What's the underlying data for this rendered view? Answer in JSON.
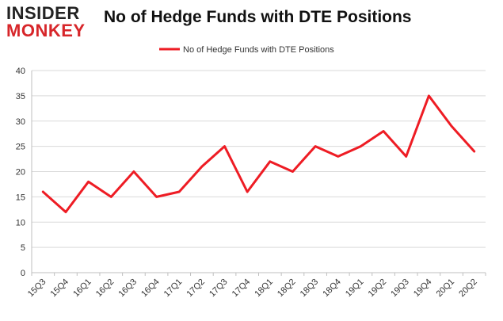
{
  "logo": {
    "line1": "INSIDER",
    "line2": "MONKEY"
  },
  "colors": {
    "series": "#ee1c24",
    "grid": "#d9d9d9",
    "axis": "#bfbfbf",
    "logo_red": "#d7262a"
  },
  "chart_data": {
    "type": "line",
    "title": "No of Hedge Funds with DTE Positions",
    "xlabel": "",
    "ylabel": "",
    "categories": [
      "15Q3",
      "15Q4",
      "16Q1",
      "16Q2",
      "16Q3",
      "16Q4",
      "17Q1",
      "17Q2",
      "17Q3",
      "17Q4",
      "18Q1",
      "18Q2",
      "18Q3",
      "18Q4",
      "19Q1",
      "19Q2",
      "19Q3",
      "19Q4",
      "20Q1",
      "20Q2"
    ],
    "series": [
      {
        "name": "No of Hedge Funds with DTE Positions",
        "values": [
          16,
          12,
          18,
          15,
          20,
          15,
          16,
          21,
          25,
          16,
          22,
          20,
          25,
          23,
          25,
          28,
          23,
          35,
          29,
          24
        ]
      }
    ],
    "ylim": [
      0,
      40
    ],
    "yticks": [
      0,
      5,
      10,
      15,
      20,
      25,
      30,
      35,
      40
    ],
    "grid": true,
    "legend": "top-center"
  }
}
